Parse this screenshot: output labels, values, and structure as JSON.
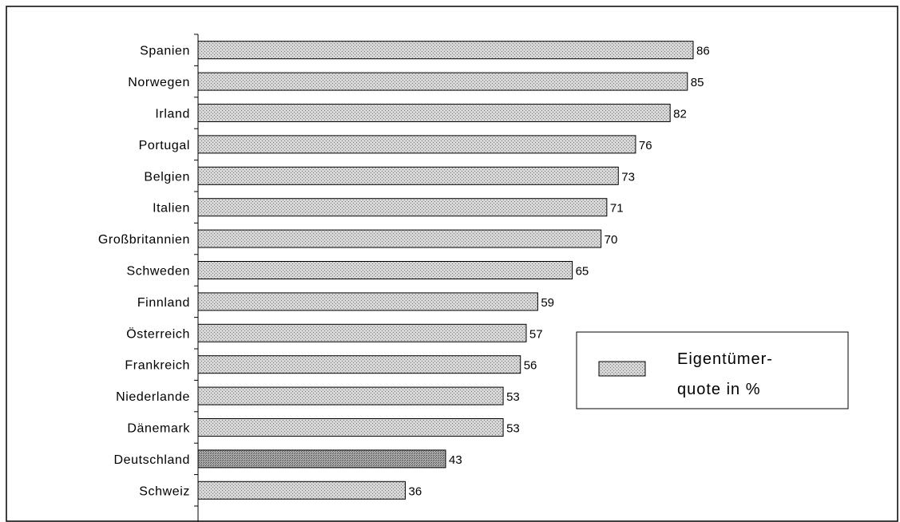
{
  "chart_data": {
    "type": "bar",
    "orientation": "horizontal",
    "categories": [
      "Spanien",
      "Norwegen",
      "Irland",
      "Portugal",
      "Belgien",
      "Italien",
      "Großbritannien",
      "Schweden",
      "Finnland",
      "Österreich",
      "Frankreich",
      "Niederlande",
      "Dänemark",
      "Deutschland",
      "Schweiz"
    ],
    "series": [
      {
        "name": "Eigentümer-quote in %",
        "values": [
          86,
          85,
          82,
          76,
          73,
          71,
          70,
          65,
          59,
          57,
          56,
          53,
          53,
          43,
          36
        ]
      }
    ],
    "highlight_category": "Deutschland",
    "title": "",
    "xlabel": "",
    "ylabel": "",
    "xlim": [
      0,
      100
    ],
    "grid": false,
    "legend": {
      "position": "right",
      "lines": [
        "Eigentümer-",
        "quote in %"
      ]
    },
    "colors": {
      "bar": "#c4c4c4",
      "highlight": "#8f8f8f"
    }
  }
}
